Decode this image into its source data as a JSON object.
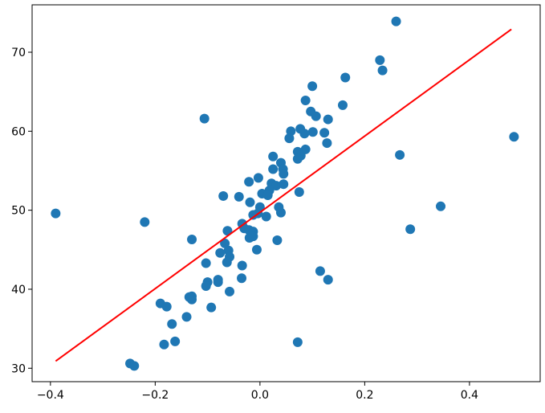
{
  "chart_data": {
    "type": "scatter",
    "title": "",
    "xlabel": "",
    "ylabel": "",
    "xlim": [
      -0.435,
      0.535
    ],
    "ylim": [
      28.3,
      76.0
    ],
    "xticks": [
      -0.4,
      -0.2,
      0.0,
      0.2,
      0.4
    ],
    "xtick_labels": [
      "−0.4",
      "−0.2",
      "0.0",
      "0.2",
      "0.4"
    ],
    "yticks": [
      30,
      40,
      50,
      60,
      70
    ],
    "ytick_labels": [
      "30",
      "40",
      "50",
      "60",
      "70"
    ],
    "grid": false,
    "legend": "none",
    "colors": {
      "points": "#1f77b4",
      "fit_line": "#ff0000"
    },
    "series": [
      {
        "kind": "points",
        "points": [
          [
            0.26,
            73.9
          ],
          [
            0.229,
            69.0
          ],
          [
            0.234,
            67.7
          ],
          [
            0.163,
            66.8
          ],
          [
            0.1,
            65.7
          ],
          [
            0.158,
            63.3
          ],
          [
            0.087,
            63.9
          ],
          [
            0.097,
            62.5
          ],
          [
            0.107,
            61.9
          ],
          [
            0.13,
            61.5
          ],
          [
            -0.106,
            61.6
          ],
          [
            0.123,
            59.8
          ],
          [
            0.101,
            59.9
          ],
          [
            0.085,
            59.7
          ],
          [
            0.059,
            60.0
          ],
          [
            0.077,
            60.3
          ],
          [
            0.056,
            59.1
          ],
          [
            0.485,
            59.3
          ],
          [
            0.128,
            58.5
          ],
          [
            0.087,
            57.7
          ],
          [
            0.072,
            57.4
          ],
          [
            0.078,
            56.9
          ],
          [
            0.072,
            56.5
          ],
          [
            0.267,
            57.0
          ],
          [
            0.025,
            56.8
          ],
          [
            0.04,
            56.0
          ],
          [
            0.025,
            55.2
          ],
          [
            0.044,
            55.2
          ],
          [
            0.045,
            54.6
          ],
          [
            -0.003,
            54.1
          ],
          [
            -0.021,
            53.6
          ],
          [
            0.022,
            53.4
          ],
          [
            0.031,
            53.1
          ],
          [
            0.045,
            53.3
          ],
          [
            0.018,
            52.5
          ],
          [
            0.004,
            52.1
          ],
          [
            0.015,
            51.9
          ],
          [
            0.075,
            52.3
          ],
          [
            -0.07,
            51.8
          ],
          [
            -0.04,
            51.7
          ],
          [
            -0.019,
            51.0
          ],
          [
            0.0,
            50.4
          ],
          [
            -0.004,
            49.6
          ],
          [
            0.036,
            50.4
          ],
          [
            0.04,
            49.7
          ],
          [
            0.012,
            49.2
          ],
          [
            -0.013,
            49.4
          ],
          [
            -0.034,
            48.3
          ],
          [
            -0.03,
            47.7
          ],
          [
            -0.021,
            47.5
          ],
          [
            -0.013,
            47.3
          ],
          [
            -0.062,
            47.4
          ],
          [
            -0.02,
            46.5
          ],
          [
            -0.013,
            46.7
          ],
          [
            0.033,
            46.2
          ],
          [
            -0.13,
            46.3
          ],
          [
            -0.067,
            45.8
          ],
          [
            -0.06,
            44.9
          ],
          [
            -0.058,
            44.1
          ],
          [
            -0.076,
            44.6
          ],
          [
            -0.006,
            45.0
          ],
          [
            -0.034,
            43.0
          ],
          [
            -0.103,
            43.3
          ],
          [
            -0.063,
            43.4
          ],
          [
            -0.035,
            41.4
          ],
          [
            -0.08,
            40.9
          ],
          [
            -0.08,
            41.2
          ],
          [
            -0.1,
            40.9
          ],
          [
            -0.103,
            40.4
          ],
          [
            -0.058,
            39.7
          ],
          [
            -0.13,
            39.1
          ],
          [
            -0.13,
            38.7
          ],
          [
            -0.135,
            39.0
          ],
          [
            -0.093,
            37.7
          ],
          [
            -0.19,
            38.2
          ],
          [
            -0.178,
            37.8
          ],
          [
            -0.14,
            36.5
          ],
          [
            -0.168,
            35.6
          ],
          [
            -0.162,
            33.4
          ],
          [
            -0.183,
            33.0
          ],
          [
            -0.248,
            30.6
          ],
          [
            -0.24,
            30.3
          ],
          [
            -0.39,
            49.6
          ],
          [
            -0.22,
            48.5
          ],
          [
            0.115,
            42.3
          ],
          [
            0.13,
            41.2
          ],
          [
            0.072,
            33.3
          ],
          [
            0.345,
            50.5
          ],
          [
            0.287,
            47.6
          ]
        ]
      },
      {
        "kind": "fit-line",
        "x": [
          -0.39,
          0.48
        ],
        "y": [
          30.9,
          72.9
        ]
      }
    ]
  }
}
